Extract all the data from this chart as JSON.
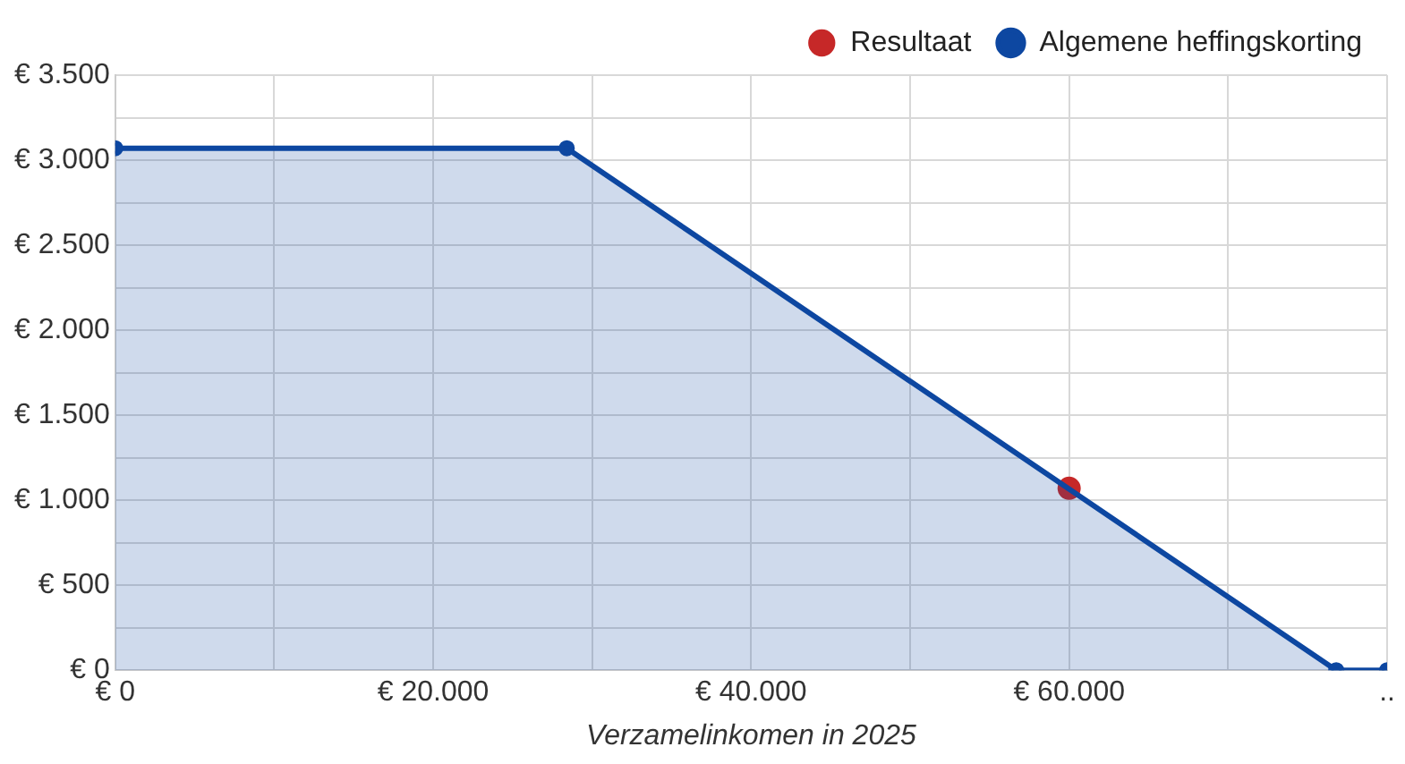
{
  "chart_data": {
    "type": "line",
    "xlabel": "Verzamelinkomen in 2025",
    "series": [
      {
        "name": "Resultaat",
        "type": "scatter",
        "color": "#c62828",
        "x": [
          60000
        ],
        "values": [
          1070
        ]
      },
      {
        "name": "Algemene heffingskorting",
        "type": "area",
        "color": "#0d47a1",
        "x": [
          0,
          28400,
          76800,
          80000
        ],
        "values": [
          3070,
          3070,
          0,
          0
        ]
      }
    ],
    "xlim": [
      0,
      80000
    ],
    "xticks": [
      {
        "value": 0,
        "label": "€ 0"
      },
      {
        "value": 10000,
        "label": null
      },
      {
        "value": 20000,
        "label": "€ 20.000"
      },
      {
        "value": 30000,
        "label": null
      },
      {
        "value": 40000,
        "label": "€ 40.000"
      },
      {
        "value": 50000,
        "label": null
      },
      {
        "value": 60000,
        "label": "€ 60.000"
      },
      {
        "value": 70000,
        "label": null
      },
      {
        "value": 80000,
        "label": ".."
      }
    ],
    "ylim": [
      0,
      3500
    ],
    "yticks": [
      {
        "value": 0,
        "label": "€ 0"
      },
      {
        "value": 250,
        "label": null
      },
      {
        "value": 500,
        "label": "€ 500"
      },
      {
        "value": 750,
        "label": null
      },
      {
        "value": 1000,
        "label": "€ 1.000"
      },
      {
        "value": 1250,
        "label": null
      },
      {
        "value": 1500,
        "label": "€ 1.500"
      },
      {
        "value": 1750,
        "label": null
      },
      {
        "value": 2000,
        "label": "€ 2.000"
      },
      {
        "value": 2250,
        "label": null
      },
      {
        "value": 2500,
        "label": "€ 2.500"
      },
      {
        "value": 2750,
        "label": null
      },
      {
        "value": 3000,
        "label": "€ 3.000"
      },
      {
        "value": 3250,
        "label": null
      },
      {
        "value": 3500,
        "label": "€ 3.500"
      }
    ],
    "grid": true,
    "legend": "top right",
    "marker": "circle",
    "line_style": "solid"
  }
}
